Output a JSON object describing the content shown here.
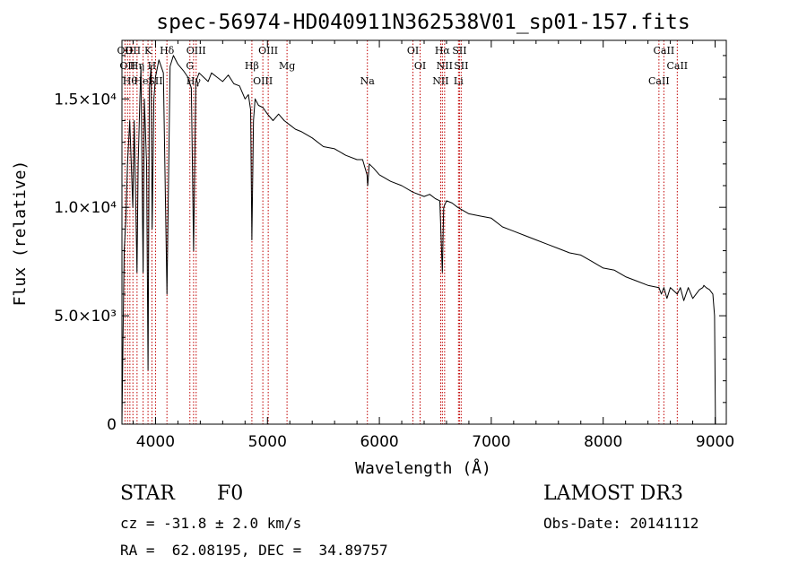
{
  "chart_data": {
    "type": "line",
    "title": "spec-56974-HD040911N362538V01_sp01-157.fits",
    "xlabel": "Wavelength (Å)",
    "ylabel": "Flux (relative)",
    "xlim": [
      3700,
      9100
    ],
    "ylim": [
      0,
      17700
    ],
    "x_ticks": [
      {
        "value": 4000,
        "label": "4000"
      },
      {
        "value": 5000,
        "label": "5000"
      },
      {
        "value": 6000,
        "label": "6000"
      },
      {
        "value": 7000,
        "label": "7000"
      },
      {
        "value": 8000,
        "label": "8000"
      },
      {
        "value": 9000,
        "label": "9000"
      }
    ],
    "y_ticks": [
      {
        "value": 0,
        "label": "0"
      },
      {
        "value": 5000,
        "label": "5.0×10³"
      },
      {
        "value": 10000,
        "label": "1.0×10⁴"
      },
      {
        "value": 15000,
        "label": "1.5×10⁴"
      }
    ],
    "series": [
      {
        "name": "spectrum",
        "x": [
          3700,
          3710,
          3720,
          3735,
          3750,
          3770,
          3797,
          3810,
          3835,
          3845,
          3860,
          3870,
          3889,
          3900,
          3920,
          3933,
          3945,
          3960,
          3970,
          3985,
          4000,
          4030,
          4070,
          4102,
          4130,
          4160,
          4200,
          4250,
          4290,
          4320,
          4340,
          4360,
          4390,
          4430,
          4470,
          4500,
          4550,
          4600,
          4650,
          4700,
          4750,
          4800,
          4830,
          4850,
          4861,
          4875,
          4890,
          4920,
          4960,
          5000,
          5050,
          5100,
          5150,
          5200,
          5250,
          5300,
          5400,
          5500,
          5600,
          5700,
          5800,
          5850,
          5890,
          5896,
          5910,
          5950,
          6000,
          6100,
          6200,
          6300,
          6400,
          6450,
          6500,
          6540,
          6563,
          6575,
          6600,
          6650,
          6700,
          6800,
          6900,
          7000,
          7100,
          7200,
          7300,
          7400,
          7500,
          7600,
          7700,
          7800,
          7900,
          8000,
          8100,
          8200,
          8300,
          8400,
          8498,
          8520,
          8542,
          8570,
          8600,
          8662,
          8690,
          8720,
          8760,
          8800,
          8860,
          8890,
          8900,
          8920,
          8950,
          8980,
          8995,
          9000,
          9003
        ],
        "y": [
          0,
          4000,
          8000,
          9500,
          12000,
          14000,
          10000,
          14000,
          7000,
          12000,
          15000,
          16500,
          7000,
          15000,
          12000,
          2500,
          15500,
          16500,
          9000,
          15000,
          16000,
          16800,
          16200,
          6000,
          16500,
          17000,
          16600,
          16300,
          16000,
          15500,
          8000,
          15800,
          16200,
          16000,
          15800,
          16200,
          16000,
          15800,
          16100,
          15700,
          15600,
          15000,
          15200,
          14500,
          8500,
          14000,
          15000,
          14700,
          14600,
          14300,
          14000,
          14300,
          14000,
          13800,
          13600,
          13500,
          13200,
          12800,
          12700,
          12400,
          12200,
          12200,
          11500,
          11000,
          12000,
          11800,
          11500,
          11200,
          11000,
          10700,
          10500,
          10600,
          10400,
          10300,
          7000,
          10000,
          10300,
          10200,
          10000,
          9700,
          9600,
          9500,
          9100,
          8900,
          8700,
          8500,
          8300,
          8100,
          7900,
          7800,
          7500,
          7200,
          7100,
          6800,
          6600,
          6400,
          6300,
          6000,
          6300,
          5800,
          6300,
          6000,
          6300,
          5700,
          6300,
          5800,
          6200,
          6300,
          6400,
          6300,
          6200,
          6000,
          5000,
          2000,
          0
        ]
      }
    ],
    "lines": [
      {
        "x": 3727,
        "label": "OII"
      },
      {
        "x": 3750,
        "label": "OII"
      },
      {
        "x": 3771,
        "label": "Hθ"
      },
      {
        "x": 3798,
        "label": "OII"
      },
      {
        "x": 3835,
        "label": "Hη"
      },
      {
        "x": 3889,
        "label": "HeI"
      },
      {
        "x": 3933,
        "label": "K"
      },
      {
        "x": 3968,
        "label": "H"
      },
      {
        "x": 4000,
        "label": "SII"
      },
      {
        "x": 4102,
        "label": "Hδ"
      },
      {
        "x": 4307,
        "label": "G"
      },
      {
        "x": 4340,
        "label": "Hγ"
      },
      {
        "x": 4363,
        "label": "OIII"
      },
      {
        "x": 4861,
        "label": "Hβ"
      },
      {
        "x": 4959,
        "label": "OIII"
      },
      {
        "x": 5007,
        "label": "OIII"
      },
      {
        "x": 5175,
        "label": "Mg"
      },
      {
        "x": 5893,
        "label": "Na"
      },
      {
        "x": 6300,
        "label": "OI"
      },
      {
        "x": 6364,
        "label": "OI"
      },
      {
        "x": 6548,
        "label": "NII"
      },
      {
        "x": 6563,
        "label": "Hα"
      },
      {
        "x": 6583,
        "label": "NII"
      },
      {
        "x": 6707,
        "label": "Li"
      },
      {
        "x": 6716,
        "label": "SII"
      },
      {
        "x": 6731,
        "label": "SII"
      },
      {
        "x": 8498,
        "label": "CaII"
      },
      {
        "x": 8542,
        "label": "CaII"
      },
      {
        "x": 8662,
        "label": "CaII"
      }
    ]
  },
  "info": {
    "class_label": "STAR",
    "subclass": "F0",
    "survey": "LAMOST DR3",
    "redshift": "cz = -31.8 ± 2.0 km/s",
    "obs_date": "Obs-Date: 20141112",
    "coords": "RA =  62.08195, DEC =  34.89757"
  }
}
